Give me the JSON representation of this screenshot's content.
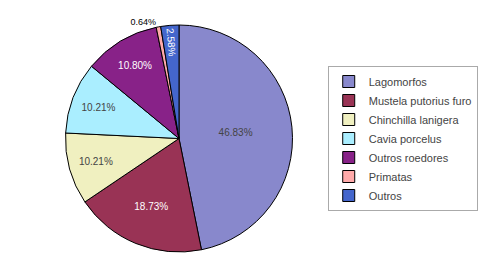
{
  "chart_data": {
    "type": "pie",
    "categories": [
      "Lagomorfos",
      "Mustela putorius furo",
      "Chinchilla lanigera",
      "Cavia porcelus",
      "Outros roedores",
      "Primatas",
      "Outros"
    ],
    "values": [
      46.83,
      18.73,
      10.21,
      10.21,
      10.8,
      0.64,
      2.58
    ],
    "value_labels": [
      "46.83%",
      "18.73%",
      "10.21%",
      "10.21%",
      "10.80%",
      "0.64%",
      "2.58%"
    ],
    "colors": [
      "#8888cc",
      "#993355",
      "#f0f0c0",
      "#aaeeff",
      "#882288",
      "#ffaaaa",
      "#4466cc"
    ],
    "legend": "right"
  }
}
